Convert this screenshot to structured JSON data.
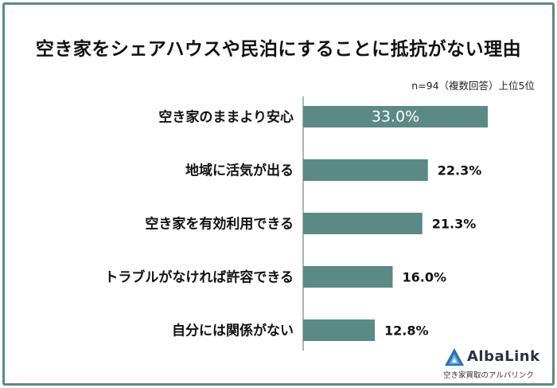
{
  "title": "空き家をシェアハウスや民泊にすることに抵抗がない理由",
  "note": "n=94（複数回答）上位5位",
  "logo": {
    "name": "AlbaLink",
    "tagline": "空き家買取のアルバリンク"
  },
  "colors": {
    "bar": "#5b8a84",
    "frame": "#5b8a84",
    "axis": "#999999"
  },
  "chart_data": {
    "type": "bar",
    "orientation": "horizontal",
    "categories": [
      "空き家のままより安心",
      "地域に活気が出る",
      "空き家を有効利用できる",
      "トラブルがなければ許容できる",
      "自分には関係がない"
    ],
    "values": [
      33.0,
      22.3,
      21.3,
      16.0,
      12.8
    ],
    "value_labels": [
      "33.0%",
      "22.3%",
      "21.3%",
      "16.0%",
      "12.8%"
    ],
    "unit": "%",
    "xlim": [
      0,
      40
    ],
    "grid": false,
    "legend": "none"
  }
}
